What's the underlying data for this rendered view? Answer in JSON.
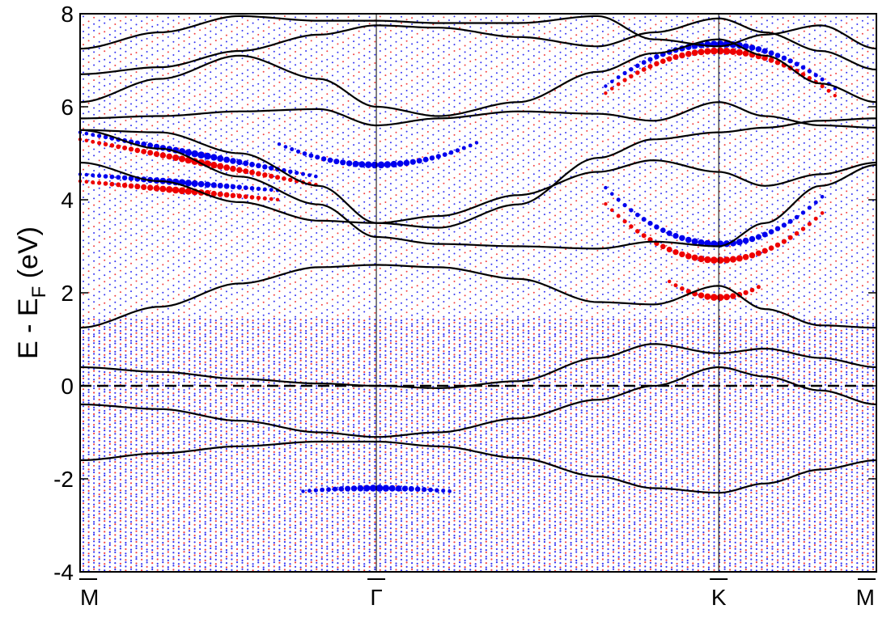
{
  "chart_data": {
    "type": "line",
    "title": "",
    "xlabel": "",
    "ylabel": "E - E_F (eV)",
    "ylabel_parts": {
      "main": "E - E",
      "subscript": "F",
      "unit": " (eV)"
    },
    "ylim": [
      -4,
      8
    ],
    "yticks": [
      -4,
      -2,
      0,
      2,
      4,
      6,
      8
    ],
    "xticks": [
      {
        "label": "M",
        "overline": true,
        "pos": 0.0
      },
      {
        "label": "Γ",
        "overline": true,
        "pos": 0.372
      },
      {
        "label": "K",
        "overline": true,
        "pos": 0.802
      },
      {
        "label": "M",
        "overline": true,
        "pos": 1.0
      }
    ],
    "fermi_level": 0,
    "grid": false,
    "legend": "none",
    "colors": {
      "bands": "#000000",
      "spin_up": "#0000ee",
      "spin_down": "#ee0000"
    },
    "k_samples": [
      0.0,
      0.1,
      0.2,
      0.3,
      0.372,
      0.45,
      0.55,
      0.65,
      0.72,
      0.802,
      0.86,
      0.93,
      1.0
    ],
    "series": [
      {
        "values": [
          -1.6,
          -1.45,
          -1.3,
          -1.2,
          -1.2,
          -1.3,
          -1.55,
          -1.95,
          -2.2,
          -2.3,
          -2.1,
          -1.8,
          -1.6
        ]
      },
      {
        "values": [
          -0.4,
          -0.5,
          -0.75,
          -1.0,
          -1.1,
          -1.0,
          -0.7,
          -0.3,
          0.0,
          0.4,
          0.2,
          -0.1,
          -0.4
        ]
      },
      {
        "values": [
          0.4,
          0.3,
          0.15,
          0.05,
          0.0,
          -0.05,
          0.1,
          0.6,
          0.9,
          0.7,
          0.8,
          0.6,
          0.4
        ]
      },
      {
        "values": [
          1.25,
          1.7,
          2.2,
          2.55,
          2.6,
          2.55,
          2.3,
          1.8,
          1.75,
          2.15,
          1.65,
          1.3,
          1.25
        ]
      },
      {
        "values": [
          4.8,
          4.4,
          3.95,
          3.55,
          3.5,
          3.65,
          4.1,
          4.6,
          4.85,
          4.6,
          4.3,
          4.55,
          4.8
        ]
      },
      {
        "values": [
          5.5,
          5.1,
          4.5,
          3.9,
          3.2,
          3.05,
          3.0,
          2.95,
          3.1,
          3.0,
          3.5,
          4.3,
          4.75
        ]
      },
      {
        "values": [
          5.5,
          5.45,
          5.0,
          4.3,
          3.5,
          3.4,
          3.9,
          4.9,
          5.3,
          5.45,
          5.55,
          5.7,
          5.75
        ]
      },
      {
        "values": [
          5.75,
          5.8,
          5.9,
          5.95,
          5.6,
          5.75,
          5.9,
          5.85,
          5.7,
          6.1,
          5.8,
          5.6,
          5.55
        ]
      },
      {
        "values": [
          6.1,
          6.6,
          7.1,
          6.6,
          6.0,
          5.8,
          6.1,
          6.75,
          7.15,
          7.45,
          7.1,
          6.5,
          6.1
        ]
      },
      {
        "values": [
          6.7,
          6.85,
          7.2,
          7.55,
          7.75,
          7.7,
          7.5,
          7.3,
          7.6,
          7.9,
          7.6,
          7.2,
          6.8
        ]
      },
      {
        "values": [
          7.25,
          7.6,
          7.95,
          7.85,
          7.85,
          7.8,
          7.8,
          7.95,
          7.45,
          7.3,
          7.55,
          7.75,
          7.25
        ]
      }
    ]
  }
}
